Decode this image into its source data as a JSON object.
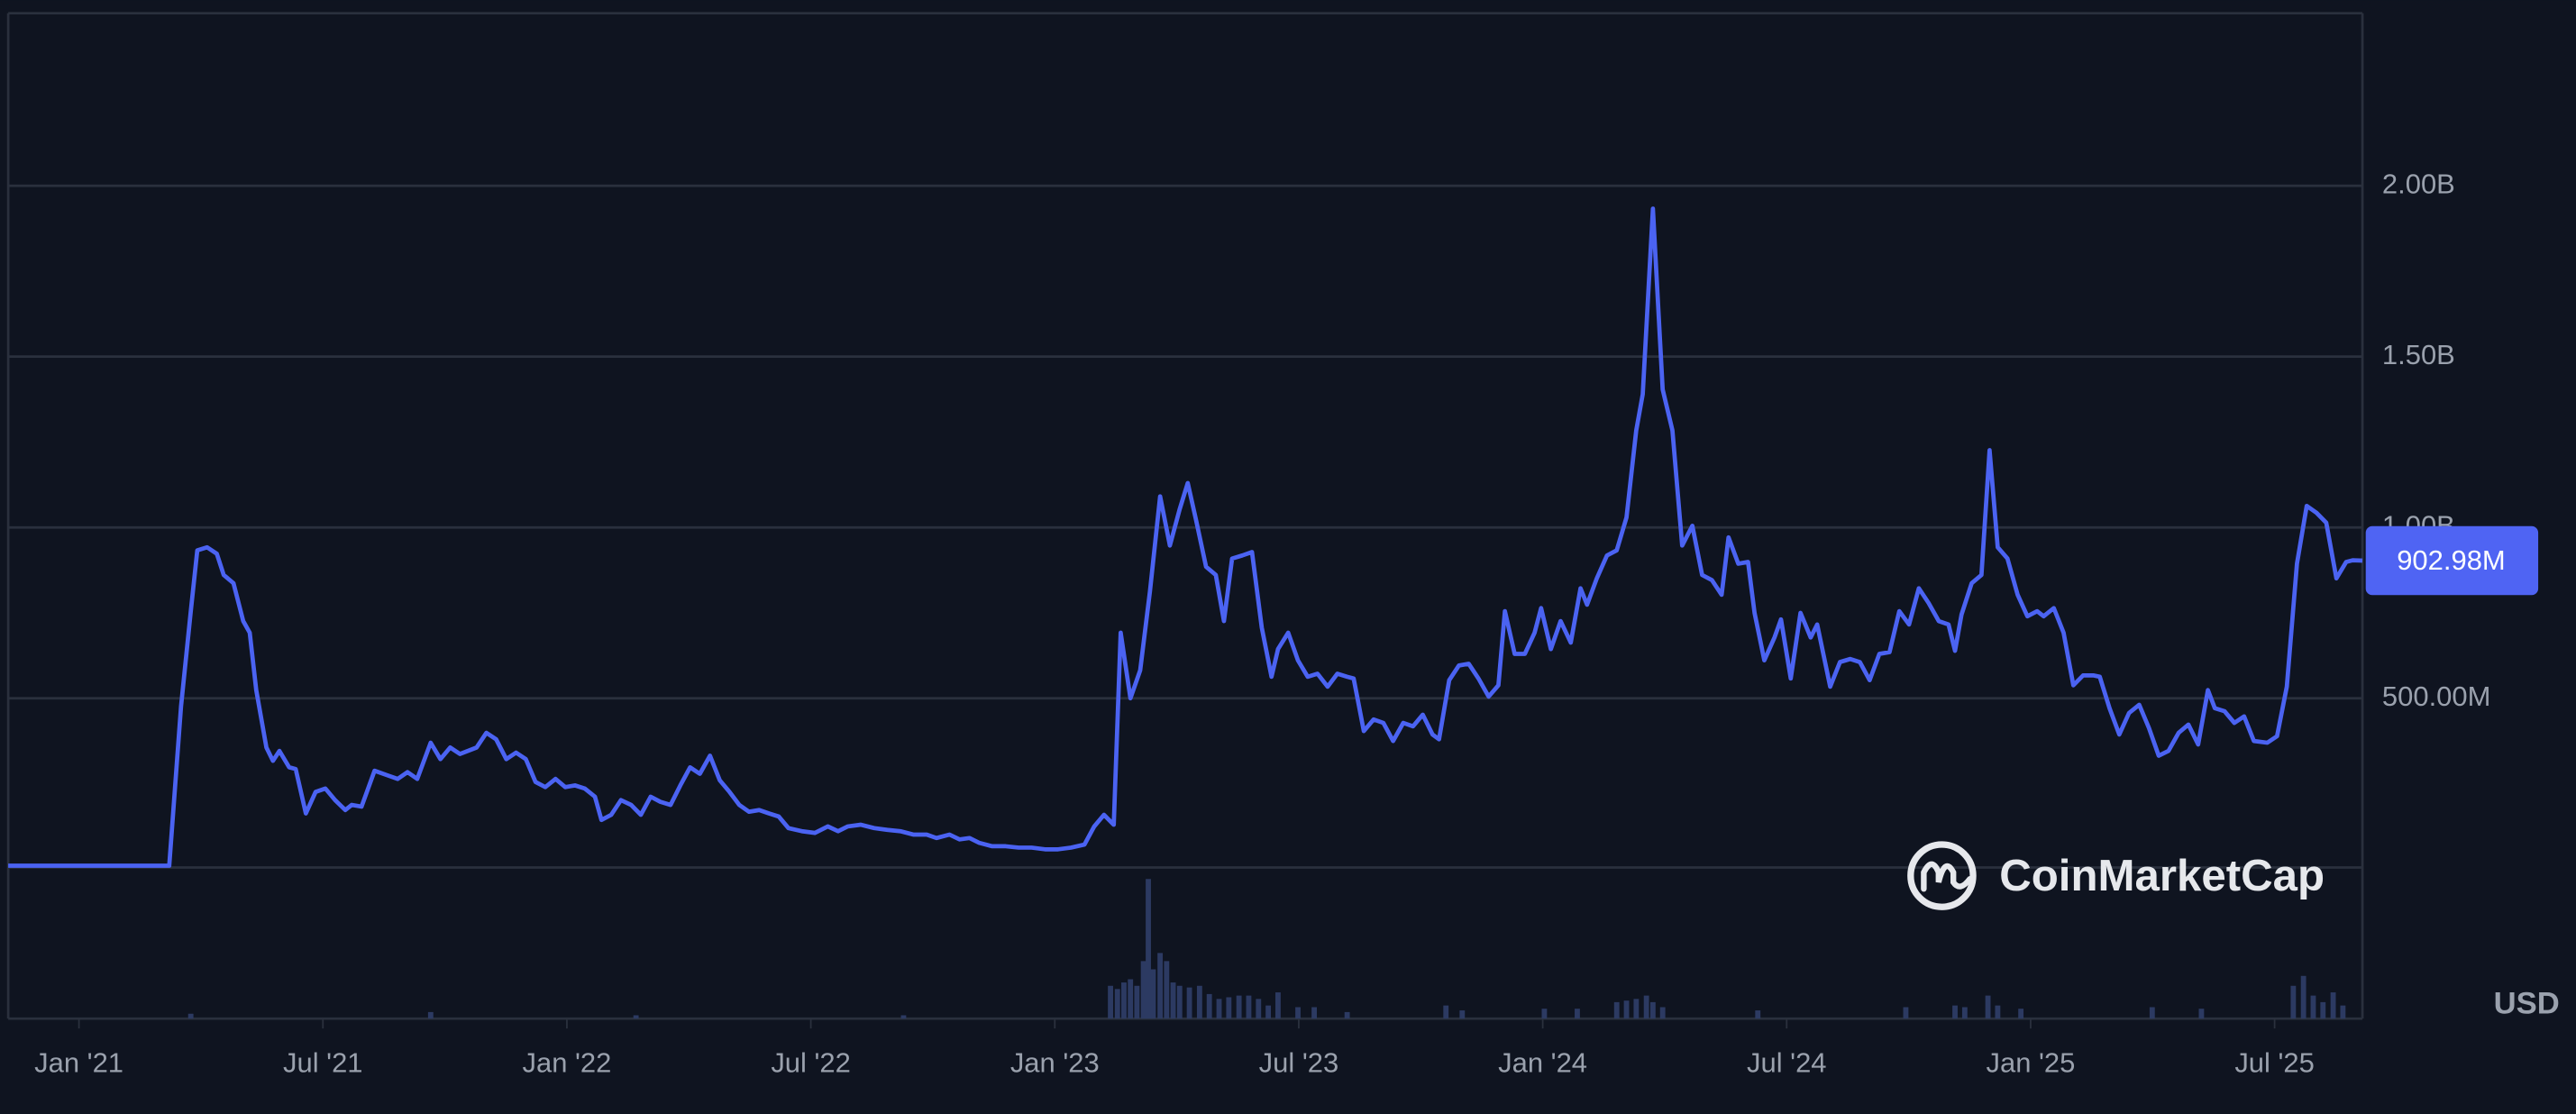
{
  "chart_data": {
    "type": "line",
    "x": [
      -1.74,
      2.22,
      2.51,
      2.75,
      2.91,
      3.15,
      3.39,
      3.56,
      3.8,
      4.04,
      4.2,
      4.36,
      4.61,
      4.77,
      4.93,
      5.17,
      5.33,
      5.58,
      5.82,
      6.06,
      6.3,
      6.55,
      6.71,
      6.95,
      7.27,
      7.6,
      7.84,
      8.08,
      8.32,
      8.65,
      8.89,
      9.13,
      9.37,
      9.78,
      10.02,
      10.26,
      10.51,
      10.75,
      10.99,
      11.23,
      11.47,
      11.72,
      11.96,
      12.2,
      12.44,
      12.69,
      12.85,
      13.09,
      13.33,
      13.58,
      13.82,
      14.06,
      14.3,
      14.55,
      14.79,
      15.03,
      15.27,
      15.52,
      15.76,
      16.0,
      16.24,
      16.48,
      16.73,
      16.97,
      17.21,
      17.45,
      17.78,
      18.1,
      18.42,
      18.67,
      18.91,
      19.23,
      19.56,
      19.88,
      20.2,
      20.53,
      20.85,
      21.09,
      21.41,
      21.66,
      21.9,
      22.14,
      22.46,
      22.79,
      23.11,
      23.43,
      23.76,
      24.08,
      24.4,
      24.73,
      24.97,
      25.21,
      25.45,
      25.62,
      25.86,
      26.1,
      26.34,
      26.59,
      26.83,
      27.07,
      27.27,
      27.47,
      27.72,
      27.96,
      28.16,
      28.36,
      28.61,
      28.85,
      29.09,
      29.33,
      29.49,
      29.74,
      29.98,
      30.22,
      30.46,
      30.71,
      30.95,
      31.19,
      31.35,
      31.6,
      31.84,
      32.08,
      32.32,
      32.57,
      32.81,
      33.05,
      33.29,
      33.45,
      33.7,
      33.94,
      34.18,
      34.42,
      34.67,
      34.91,
      35.07,
      35.31,
      35.56,
      35.8,
      35.96,
      36.2,
      36.44,
      36.69,
      36.93,
      37.09,
      37.33,
      37.58,
      37.82,
      38.06,
      38.3,
      38.46,
      38.71,
      38.95,
      39.19,
      39.43,
      39.68,
      39.92,
      40.16,
      40.4,
      40.57,
      40.81,
      41.05,
      41.21,
      41.45,
      41.7,
      41.86,
      42.1,
      42.34,
      42.59,
      42.75,
      43.07,
      43.31,
      43.56,
      43.8,
      44.04,
      44.28,
      44.53,
      44.77,
      45.01,
      45.25,
      45.49,
      45.74,
      45.98,
      46.14,
      46.3,
      46.55,
      46.79,
      46.99,
      47.19,
      47.43,
      47.68,
      47.92,
      48.16,
      48.32,
      48.57,
      48.81,
      49.05,
      49.29,
      49.54,
      49.7,
      49.94,
      50.18,
      50.42,
      50.67,
      50.91,
      51.15,
      51.39,
      51.64,
      51.88,
      52.12,
      52.36,
      52.53,
      52.77,
      53.01,
      53.25,
      53.49,
      53.82,
      54.06,
      54.3,
      54.55,
      54.79,
      55.03,
      55.27,
      55.52,
      55.76,
      55.92,
      56.16
    ],
    "values": [
      10,
      10,
      476,
      755,
      933,
      942,
      923,
      861,
      837,
      726,
      692,
      524,
      356,
      317,
      346,
      298,
      293,
      163,
      226,
      236,
      202,
      173,
      188,
      183,
      288,
      274,
      264,
      284,
      264,
      370,
      322,
      356,
      337,
      356,
      399,
      380,
      322,
      341,
      322,
      255,
      240,
      264,
      240,
      245,
      236,
      212,
      144,
      159,
      202,
      188,
      159,
      212,
      197,
      188,
      245,
      298,
      279,
      332,
      260,
      226,
      188,
      168,
      173,
      163,
      154,
      120,
      111,
      106,
      125,
      111,
      125,
      130,
      120,
      115,
      111,
      101,
      101,
      91,
      101,
      87,
      91,
      77,
      67,
      67,
      63,
      63,
      58,
      58,
      63,
      72,
      125,
      159,
      130,
      692,
      500,
      582,
      813,
      1091,
      947,
      1053,
      1130,
      1024,
      885,
      861,
      726,
      909,
      918,
      928,
      707,
      563,
      644,
      692,
      611,
      563,
      572,
      534,
      572,
      563,
      558,
      404,
      438,
      428,
      375,
      428,
      418,
      452,
      394,
      380,
      553,
      596,
      601,
      558,
      505,
      538,
      755,
      630,
      630,
      692,
      764,
      644,
      726,
      663,
      822,
      774,
      851,
      918,
      933,
      1029,
      1284,
      1390,
      1933,
      1404,
      1284,
      947,
      1005,
      861,
      846,
      803,
      971,
      894,
      899,
      750,
      611,
      678,
      731,
      558,
      750,
      678,
      716,
      534,
      606,
      615,
      606,
      553,
      630,
      635,
      755,
      716,
      822,
      779,
      726,
      716,
      639,
      745,
      837,
      861,
      1226,
      942,
      909,
      803,
      740,
      755,
      740,
      764,
      692,
      538,
      567,
      567,
      563,
      471,
      394,
      457,
      481,
      413,
      332,
      346,
      399,
      423,
      365,
      524,
      471,
      462,
      428,
      447,
      375,
      370,
      389,
      534,
      894,
      1063,
      1043,
      1014,
      851,
      899,
      904,
      902.98
    ],
    "color": "#4b63f2",
    "current_label": "902.98M",
    "xlim": [
      -1.74,
      56.16
    ],
    "xticks": [
      {
        "value": 0,
        "label": "Jan '21"
      },
      {
        "value": 6,
        "label": "Jul '21"
      },
      {
        "value": 12,
        "label": "Jan '22"
      },
      {
        "value": 18,
        "label": "Jul '22"
      },
      {
        "value": 24,
        "label": "Jan '23"
      },
      {
        "value": 30,
        "label": "Jul '23"
      },
      {
        "value": 36,
        "label": "Jan '24"
      },
      {
        "value": 42,
        "label": "Jul '24"
      },
      {
        "value": 48,
        "label": "Jan '25"
      },
      {
        "value": 54,
        "label": "Jul '25"
      }
    ],
    "ylim": [
      0,
      2505
    ],
    "yticks": [
      {
        "value": 500,
        "label": "500.00M"
      },
      {
        "value": 1000,
        "label": "1.00B"
      },
      {
        "value": 1500,
        "label": "1.50B"
      },
      {
        "value": 2000,
        "label": "2.00B"
      }
    ],
    "grid": true,
    "volume": {
      "color": "#2c3a62",
      "x": [
        2.75,
        8.65,
        13.7,
        20.28,
        25.37,
        25.54,
        25.7,
        25.86,
        26.02,
        26.18,
        26.3,
        26.42,
        26.59,
        26.75,
        26.91,
        27.07,
        27.31,
        27.56,
        27.8,
        28.04,
        28.28,
        28.53,
        28.77,
        29.01,
        29.25,
        29.49,
        29.98,
        30.38,
        31.19,
        33.62,
        34.02,
        36.04,
        36.85,
        37.82,
        38.06,
        38.3,
        38.55,
        38.71,
        38.95,
        41.29,
        44.93,
        46.14,
        46.38,
        46.95,
        47.19,
        47.76,
        50.99,
        52.2,
        54.46,
        54.71,
        54.95,
        55.19,
        55.44,
        55.68
      ],
      "values": [
        35,
        47,
        24,
        24,
        235,
        212,
        259,
        282,
        235,
        412,
        1000,
        353,
        470,
        412,
        259,
        235,
        223,
        235,
        176,
        141,
        153,
        165,
        165,
        141,
        94,
        188,
        82,
        82,
        47,
        94,
        59,
        71,
        71,
        118,
        129,
        141,
        165,
        118,
        82,
        59,
        82,
        94,
        82,
        165,
        94,
        71,
        82,
        71,
        235,
        306,
        165,
        118,
        188,
        94
      ],
      "y2lim": [
        0,
        1000
      ]
    },
    "currency": "USD",
    "watermark": "CoinMarketCap"
  }
}
